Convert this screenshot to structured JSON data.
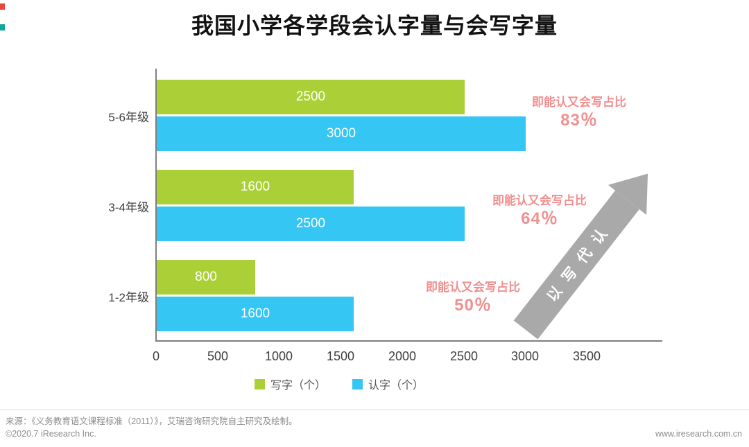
{
  "title": "我国小学各学段会认字量与会写字量",
  "chart_data": {
    "type": "bar",
    "orientation": "horizontal",
    "categories": [
      "5-6年级",
      "3-4年级",
      "1-2年级"
    ],
    "series": [
      {
        "name": "写字（个）",
        "key": "write",
        "color": "#abd037",
        "values": [
          2500,
          1600,
          800
        ]
      },
      {
        "name": "认字（个）",
        "key": "read",
        "color": "#35c6f4",
        "values": [
          3000,
          2500,
          1600
        ]
      }
    ],
    "xlim": [
      0,
      3500
    ],
    "x_ticks": [
      "0",
      "500",
      "1000",
      "1500",
      "2000",
      "2500",
      "3000",
      "3500"
    ],
    "legend_position": "bottom",
    "grid": false,
    "annotations": [
      {
        "label": "即能认又会写占比",
        "value": "83％"
      },
      {
        "label": "即能认又会写占比",
        "value": "64％"
      },
      {
        "label": "即能认又会写占比",
        "value": "50％"
      }
    ],
    "arrow_label": "以写代认"
  },
  "colors": {
    "write_bar": "#abd037",
    "read_bar": "#35c6f4",
    "annotation_pink": "#f0908f",
    "arrow_gray": "#a9a9a9",
    "axis_gray": "#7f7f7f"
  },
  "footer": {
    "source": "来源：《义务教育语文课程标准（2011）》，艾瑞咨询研究院自主研究及绘制。",
    "copyright": "©2020.7 iResearch Inc.",
    "website": "www.iresearch.com.cn"
  }
}
